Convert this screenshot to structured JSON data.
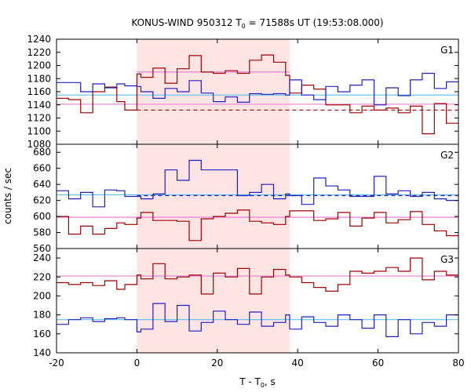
{
  "chart_data": {
    "type": "line",
    "title": {
      "prefix": "KONUS-WIND 950312 T",
      "sub": "0",
      "suffix": " = 71588s UT (19:53:08.000)"
    },
    "xlabel": {
      "prefix": "T - T",
      "sub": "0",
      "suffix": ", s"
    },
    "ylabel": "counts / sec",
    "xlim": [
      -20,
      80
    ],
    "x_ticks": [
      -20,
      0,
      20,
      40,
      60,
      80
    ],
    "shaded_interval": {
      "x0": 0,
      "x1": 38,
      "color": "#ffe4e4"
    },
    "bin_edges": [
      -20,
      -17,
      -14,
      -11,
      -8,
      -5,
      -3,
      0,
      1,
      4,
      7,
      10,
      13,
      16,
      19,
      22,
      25,
      28,
      31,
      34,
      37,
      38,
      41,
      44,
      47,
      50,
      53,
      56,
      59,
      62,
      65,
      68,
      71,
      74,
      77,
      80
    ],
    "colors": {
      "red": "#a00000",
      "blue": "#2020c0",
      "cyan": "#60c0e8",
      "pink": "#e880d8"
    },
    "panels": [
      {
        "label": "G1",
        "ylim": [
          1080,
          1240
        ],
        "y_ticks": [
          1080,
          1100,
          1120,
          1140,
          1160,
          1180,
          1200,
          1220,
          1240
        ],
        "series": [
          {
            "color": "red",
            "values": [
              1150,
              1148,
              1128,
              1160,
              1167,
              1145,
              1132,
              1187,
              1182,
              1196,
              1173,
              1195,
              1215,
              1190,
              1188,
              1192,
              1188,
              1208,
              1216,
              1205,
              1185,
              1158,
              1170,
              1164,
              1140,
              1140,
              1128,
              1138,
              1132,
              1135,
              1128,
              1138,
              1096,
              1142,
              1112
            ]
          },
          {
            "color": "blue",
            "values": [
              1174,
              1174,
              1160,
              1172,
              1166,
              1172,
              1169,
              1168,
              1160,
              1150,
              1165,
              1160,
              1177,
              1158,
              1145,
              1152,
              1144,
              1157,
              1156,
              1157,
              1155,
              1178,
              1155,
              1148,
              1168,
              1160,
              1170,
              1178,
              1140,
              1166,
              1154,
              1178,
              1188,
              1165,
              1175
            ]
          }
        ],
        "flat_lines": [
          {
            "color": "cyan",
            "value": 1155,
            "x0": -20,
            "x1": 80,
            "dashed": false
          },
          {
            "color": "pink",
            "value": 1141,
            "x0": -20,
            "x1": 80,
            "dashed": false
          },
          {
            "color": "pink",
            "value": 1190,
            "x0": 0,
            "x1": 38,
            "dashed": false
          },
          {
            "color": "red",
            "value": 1132,
            "x0": 0,
            "x1": 80,
            "dashed": true
          }
        ]
      },
      {
        "label": "G2",
        "ylim": [
          560,
          690
        ],
        "y_ticks": [
          560,
          580,
          600,
          620,
          640,
          660,
          680
        ],
        "series": [
          {
            "color": "red",
            "values": [
              600,
              578,
              588,
              578,
              585,
              592,
              590,
              598,
              605,
              595,
              595,
              594,
              570,
              597,
              600,
              604,
              608,
              594,
              592,
              590,
              600,
              607,
              607,
              595,
              597,
              605,
              588,
              598,
              605,
              592,
              596,
              606,
              590,
              582,
              576
            ]
          },
          {
            "color": "blue",
            "values": [
              632,
              622,
              630,
              612,
              633,
              632,
              625,
              625,
              622,
              628,
              658,
              645,
              670,
              658,
              658,
              658,
              626,
              630,
              640,
              622,
              628,
              626,
              615,
              648,
              638,
              633,
              625,
              625,
              650,
              628,
              632,
              625,
              630,
              622,
              620
            ]
          }
        ],
        "flat_lines": [
          {
            "color": "cyan",
            "value": 627,
            "x0": -20,
            "x1": 80,
            "dashed": false
          },
          {
            "color": "pink",
            "value": 599,
            "x0": -20,
            "x1": 80,
            "dashed": false
          },
          {
            "color": "blue",
            "value": 626,
            "x0": 0,
            "x1": 80,
            "dashed": true
          }
        ]
      },
      {
        "label": "G3",
        "ylim": [
          140,
          250
        ],
        "y_ticks": [
          140,
          160,
          180,
          200,
          220,
          240
        ],
        "series": [
          {
            "color": "red",
            "values": [
              214,
              212,
              214,
              211,
              216,
              207,
              212,
              222,
              218,
              234,
              218,
              220,
              222,
              202,
              224,
              220,
              229,
              202,
              220,
              228,
              222,
              220,
              214,
              209,
              205,
              212,
              226,
              224,
              226,
              230,
              226,
              240,
              217,
              226,
              222
            ]
          },
          {
            "color": "blue",
            "values": [
              170,
              175,
              177,
              173,
              176,
              177,
              175,
              162,
              165,
              192,
              173,
              190,
              163,
              172,
              184,
              175,
              170,
              183,
              168,
              172,
              180,
              165,
              178,
              172,
              168,
              180,
              175,
              166,
              180,
              157,
              175,
              160,
              172,
              168,
              180
            ]
          }
        ],
        "flat_lines": [
          {
            "color": "cyan",
            "value": 175,
            "x0": -20,
            "x1": 80,
            "dashed": false
          },
          {
            "color": "pink",
            "value": 221,
            "x0": -20,
            "x1": 80,
            "dashed": false
          }
        ]
      }
    ]
  }
}
